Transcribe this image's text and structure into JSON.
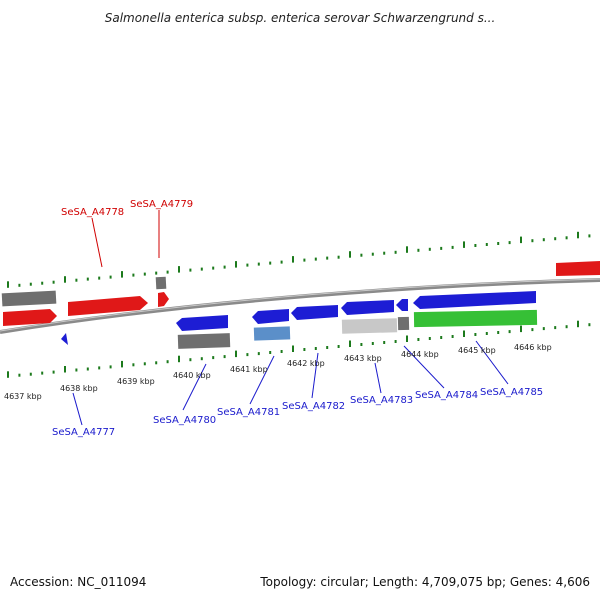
{
  "title": "Salmonella enterica subsp. enterica serovar Schwarzengrund s...",
  "accession": "Accession: NC_011094",
  "topology": "Topology: circular; Length: 4,709,075 bp; Genes: 4,606",
  "colors": {
    "forward_gene": "#e01818",
    "reverse_gene": "#1d1dd4",
    "tick": "#1c7a1c",
    "backbone": "#8a8a8a",
    "forward_label": "#d00000",
    "reverse_label": "#1a1acc",
    "cds_gray": "#6f6f6f",
    "cds_light": "#c8c8c8",
    "cds_green": "#36c036",
    "cds_steel": "#5b8fc9"
  },
  "kbp_labels": [
    "4637 kbp",
    "4638 kbp",
    "4639 kbp",
    "4640 kbp",
    "4641 kbp",
    "4642 kbp",
    "4643 kbp",
    "4644 kbp",
    "4645 kbp",
    "4646 kbp"
  ],
  "forward_genes": [
    "SeSA_A4778",
    "SeSA_A4779"
  ],
  "reverse_genes": [
    "SeSA_A4777",
    "SeSA_A4780",
    "SeSA_A4781",
    "SeSA_A4782",
    "SeSA_A4783",
    "SeSA_A4784",
    "SeSA_A4785"
  ]
}
